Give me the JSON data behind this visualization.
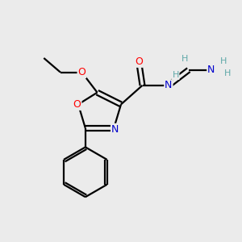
{
  "background_color": "#ebebeb",
  "atom_colors": {
    "C": "#000000",
    "N": "#0000cd",
    "O": "#ff0000",
    "H": "#5fa8a8"
  },
  "bond_color": "#000000",
  "bond_width": 1.6,
  "figsize": [
    3.0,
    3.0
  ],
  "dpi": 100,
  "xlim": [
    0,
    10
  ],
  "ylim": [
    0,
    10
  ]
}
